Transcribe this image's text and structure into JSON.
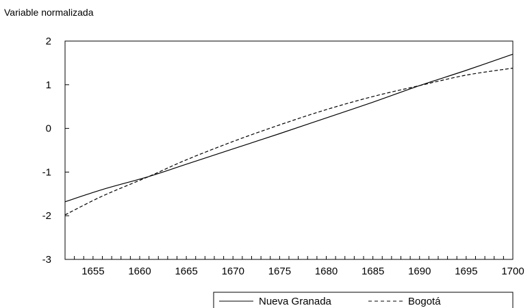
{
  "chart_data": {
    "type": "line",
    "title": "",
    "ylabel": "Variable normalizada",
    "xlabel": "",
    "xlim": [
      1652,
      1700
    ],
    "ylim": [
      -3,
      2
    ],
    "x_ticks": [
      1655,
      1660,
      1665,
      1670,
      1675,
      1680,
      1685,
      1690,
      1695,
      1700
    ],
    "y_ticks": [
      2,
      1,
      0,
      -1,
      -2,
      -3
    ],
    "grid": false,
    "legend_position": "bottom",
    "series": [
      {
        "name": "Nueva Granada",
        "style": "solid",
        "color": "#000000",
        "x": [
          1652,
          1656,
          1661,
          1665,
          1670,
          1675,
          1680,
          1685,
          1690,
          1695,
          1700
        ],
        "y": [
          -1.68,
          -1.4,
          -1.1,
          -0.82,
          -0.47,
          -0.12,
          0.24,
          0.6,
          0.98,
          1.33,
          1.7
        ]
      },
      {
        "name": "Bogotá",
        "style": "dashed",
        "color": "#000000",
        "x": [
          1652,
          1656,
          1661,
          1665,
          1670,
          1675,
          1680,
          1685,
          1690,
          1695,
          1700
        ],
        "y": [
          -1.98,
          -1.55,
          -1.1,
          -0.72,
          -0.3,
          0.08,
          0.43,
          0.73,
          0.98,
          1.22,
          1.38
        ]
      }
    ]
  }
}
